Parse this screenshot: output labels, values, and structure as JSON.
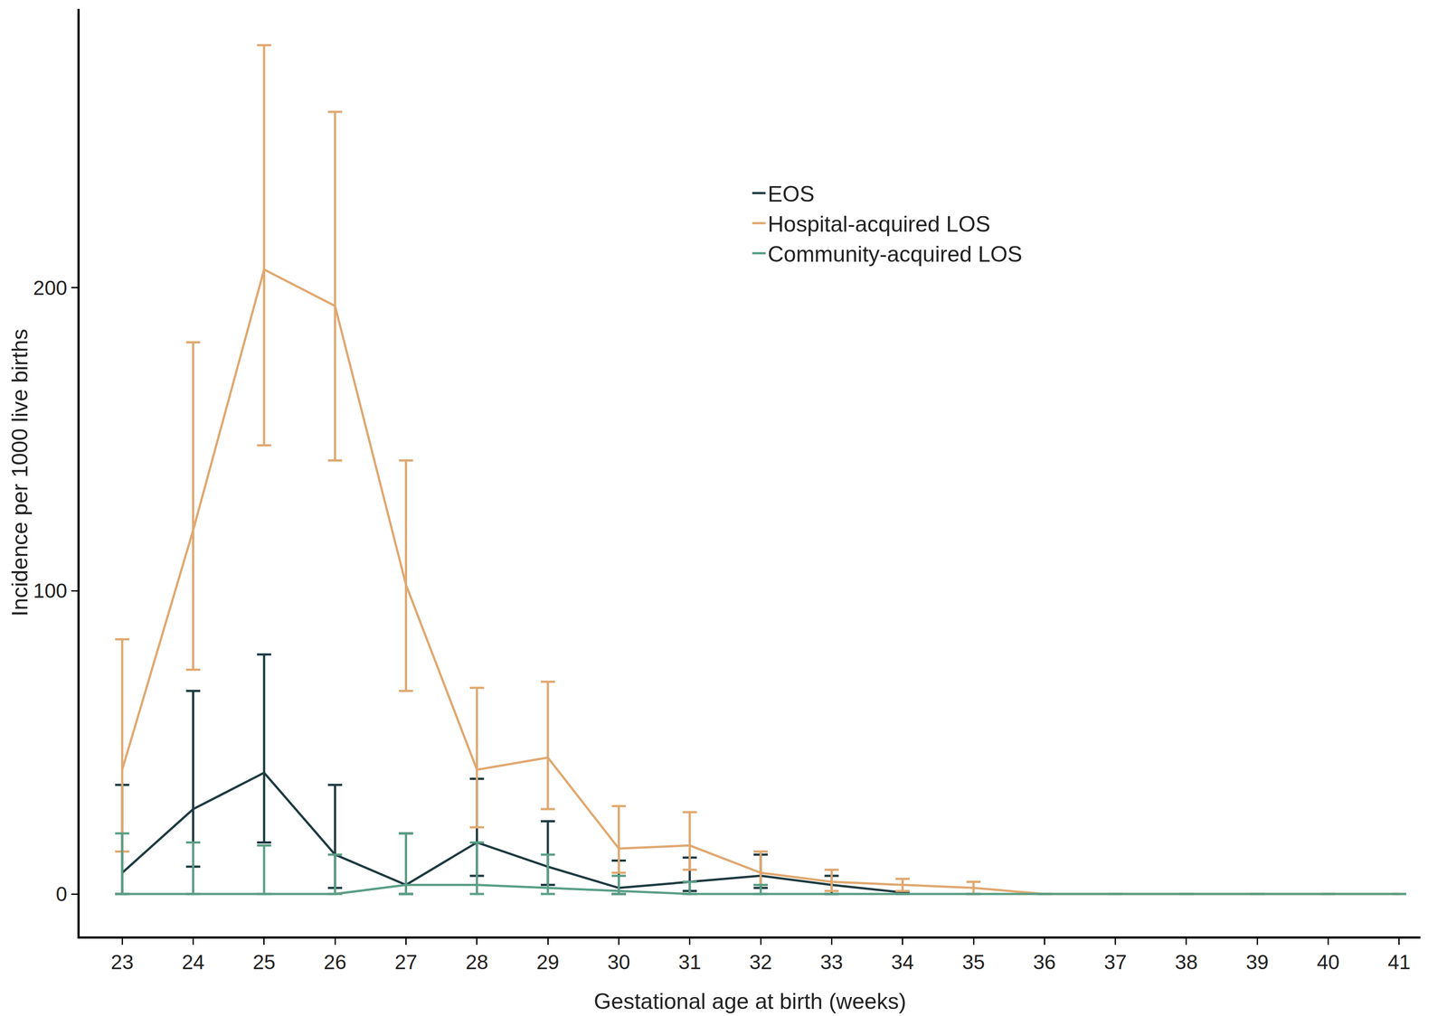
{
  "chart_data": {
    "type": "line",
    "x_label": "Gestational age at birth (weeks)",
    "y_label": "Incidence per 1000 live births",
    "xlim": [
      22.4,
      41.3
    ],
    "xticks": [
      23,
      24,
      25,
      26,
      27,
      28,
      29,
      30,
      31,
      32,
      33,
      34,
      35,
      36,
      37,
      38,
      39,
      40,
      41
    ],
    "ylim": [
      -14,
      292
    ],
    "yticks": [
      0,
      100,
      200
    ],
    "grid": false,
    "legend": "top-right",
    "series": [
      {
        "name": "EOS",
        "color": "#1d3a40",
        "x": [
          23,
          24,
          25,
          26,
          27,
          28,
          29,
          30,
          31,
          32,
          33,
          34
        ],
        "values": [
          7,
          28,
          40,
          13,
          3,
          17,
          9,
          2,
          4,
          6,
          3,
          0.5
        ],
        "ci_lower": [
          0,
          9,
          17,
          2,
          0,
          6,
          3,
          0,
          1,
          2,
          0,
          null
        ],
        "ci_upper": [
          36,
          67,
          79,
          36,
          20,
          38,
          24,
          11,
          12,
          13,
          6,
          null
        ]
      },
      {
        "name": "Hospital-acquired LOS",
        "color": "#e0a870",
        "x": [
          23,
          24,
          25,
          26,
          27,
          28,
          29,
          30,
          31,
          32,
          33,
          34,
          35,
          36,
          37,
          38,
          39,
          40,
          41
        ],
        "values": [
          41,
          120,
          206,
          194,
          102,
          41,
          45,
          15,
          16,
          7,
          4,
          3,
          2,
          0,
          0,
          0,
          0,
          0,
          0
        ],
        "ci_lower": [
          14,
          74,
          148,
          143,
          67,
          22,
          28,
          7,
          8,
          3,
          1,
          1,
          0,
          null,
          null,
          null,
          null,
          null,
          null
        ],
        "ci_upper": [
          84,
          182,
          280,
          258,
          143,
          68,
          70,
          29,
          27,
          14,
          8,
          5,
          4,
          null,
          null,
          null,
          null,
          null,
          null
        ]
      },
      {
        "name": "Community-acquired LOS",
        "color": "#5a9e85",
        "x": [
          23,
          24,
          25,
          26,
          27,
          28,
          29,
          30,
          31,
          32,
          33,
          34,
          35,
          36,
          37,
          38,
          39,
          40,
          41
        ],
        "values": [
          0,
          0,
          0,
          0,
          3,
          3,
          2,
          1,
          0,
          0,
          0,
          0,
          0,
          0,
          0,
          0,
          0,
          0,
          0
        ],
        "ci_lower": [
          0,
          0,
          0,
          0,
          0,
          0,
          0,
          0,
          0,
          0,
          null,
          null,
          null,
          null,
          null,
          null,
          null,
          null,
          null
        ],
        "ci_upper": [
          20,
          17,
          16,
          13,
          20,
          17,
          13,
          6,
          4,
          3,
          null,
          null,
          null,
          null,
          null,
          null,
          null,
          null,
          null
        ]
      }
    ]
  }
}
